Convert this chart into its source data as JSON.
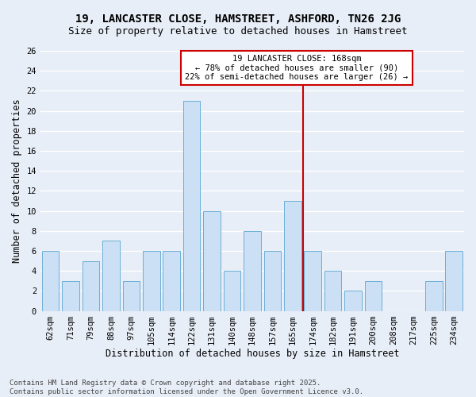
{
  "title_line1": "19, LANCASTER CLOSE, HAMSTREET, ASHFORD, TN26 2JG",
  "title_line2": "Size of property relative to detached houses in Hamstreet",
  "xlabel": "Distribution of detached houses by size in Hamstreet",
  "ylabel": "Number of detached properties",
  "footnote": "Contains HM Land Registry data © Crown copyright and database right 2025.\nContains public sector information licensed under the Open Government Licence v3.0.",
  "categories": [
    "62sqm",
    "71sqm",
    "79sqm",
    "88sqm",
    "97sqm",
    "105sqm",
    "114sqm",
    "122sqm",
    "131sqm",
    "140sqm",
    "148sqm",
    "157sqm",
    "165sqm",
    "174sqm",
    "182sqm",
    "191sqm",
    "200sqm",
    "208sqm",
    "217sqm",
    "225sqm",
    "234sqm"
  ],
  "values": [
    6,
    3,
    5,
    7,
    3,
    6,
    6,
    21,
    10,
    4,
    8,
    6,
    11,
    6,
    4,
    2,
    3,
    0,
    0,
    3,
    6
  ],
  "bar_color": "#cce0f5",
  "bar_edge_color": "#6baed6",
  "vline_x_index": 12,
  "vline_label": "19 LANCASTER CLOSE: 168sqm",
  "annotation_line2": "← 78% of detached houses are smaller (90)",
  "annotation_line3": "22% of semi-detached houses are larger (26) →",
  "annotation_box_color": "#ffffff",
  "annotation_box_edge": "#cc0000",
  "vline_color": "#cc0000",
  "ylim": [
    0,
    26
  ],
  "yticks": [
    0,
    2,
    4,
    6,
    8,
    10,
    12,
    14,
    16,
    18,
    20,
    22,
    24,
    26
  ],
  "background_color": "#e8eef7",
  "grid_color": "#ffffff",
  "title_fontsize": 10,
  "subtitle_fontsize": 9,
  "tick_fontsize": 7.5,
  "ylabel_fontsize": 8.5,
  "xlabel_fontsize": 8.5,
  "annotation_fontsize": 7.5,
  "footnote_fontsize": 6.5
}
